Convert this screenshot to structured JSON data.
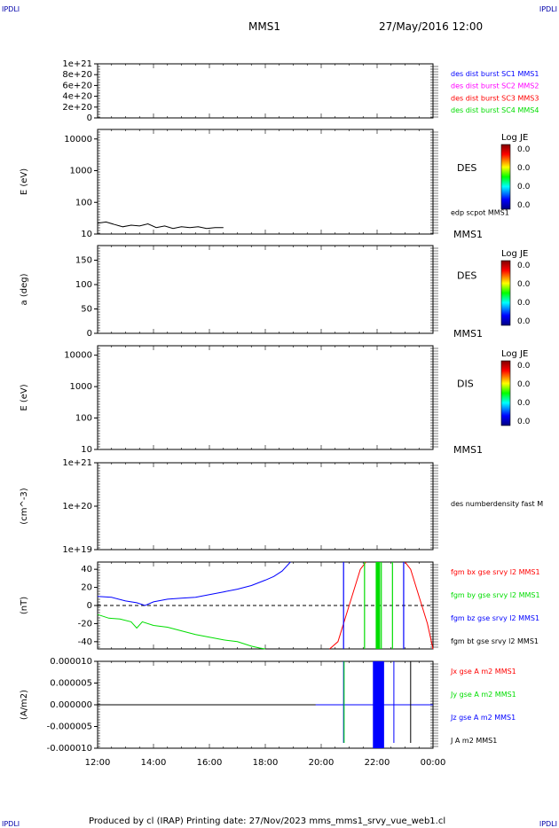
{
  "header": {
    "corner_left": "IPDLI",
    "corner_right": "IPDLI",
    "spacecraft": "MMS1",
    "datetime": "27/May/2016 12:00"
  },
  "footer": {
    "text": "Produced by cl (IRAP)   Printing date: 27/Nov/2023   mms_mms1_srvy_vue_web1.cl",
    "corner_left": "IPDLI",
    "corner_right": "IPDLI"
  },
  "xaxis": {
    "ticks": [
      "12:00",
      "14:00",
      "16:00",
      "18:00",
      "20:00",
      "22:00",
      "00:00"
    ],
    "range_hours": [
      12,
      24
    ]
  },
  "colors": {
    "c1": "#0000ff",
    "c2": "#ff00ff",
    "c3": "#ff0000",
    "c4": "#00dd00",
    "black": "#000000"
  },
  "chart_data": [
    {
      "type": "line",
      "yticks": [
        "1e+21",
        "8e+20",
        "6e+20",
        "4e+20",
        "2e+20",
        "0"
      ],
      "ylim": [
        0,
        1e+21
      ],
      "legend": [
        "des dist burst SC1 MMS1",
        "des dist burst SC2 MMS2",
        "des dist burst SC3 MMS3",
        "des dist burst SC4 MMS4"
      ],
      "zero_line": 0
    },
    {
      "type": "heatmap",
      "ylabel": "E (eV)",
      "scale": "log",
      "ylim": [
        10,
        20000
      ],
      "yticks": [
        "10000",
        "1000",
        "100",
        "10"
      ],
      "instrument": "DES",
      "colorbar_title": "Log JE",
      "colorbar_ticks": [
        "0.0",
        "0.0",
        "0.0",
        "0.0"
      ],
      "line_label": "edp scpot MMS1",
      "spacecraft_label": "MMS1",
      "series": [
        {
          "name": "edp scpot MMS1",
          "x": [
            12.0,
            12.3,
            12.6,
            12.9,
            13.2,
            13.5,
            13.8,
            14.1,
            14.4,
            14.7,
            15.0,
            15.3,
            15.6,
            15.9,
            16.2,
            16.5
          ],
          "y": [
            22,
            24,
            20,
            17,
            19,
            18,
            21,
            16,
            18,
            15,
            17,
            16,
            17,
            15,
            16,
            16
          ]
        }
      ]
    },
    {
      "type": "heatmap",
      "ylabel": "a (deg)",
      "ylim": [
        0,
        180
      ],
      "yticks": [
        "150",
        "100",
        "50",
        "0"
      ],
      "instrument": "DES",
      "colorbar_title": "Log JE",
      "colorbar_ticks": [
        "0.0",
        "0.0",
        "0.0",
        "0.0"
      ],
      "spacecraft_label": "MMS1"
    },
    {
      "type": "heatmap",
      "ylabel": "E (eV)",
      "scale": "log",
      "ylim": [
        10,
        20000
      ],
      "yticks": [
        "10000",
        "1000",
        "100",
        "10"
      ],
      "instrument": "DIS",
      "colorbar_title": "Log JE",
      "colorbar_ticks": [
        "0.0",
        "0.0",
        "0.0",
        "0.0"
      ],
      "spacecraft_label": "MMS1"
    },
    {
      "type": "line",
      "ylabel": "(cm^-3)",
      "scale": "log",
      "ylim": [
        1e+19,
        1e+21
      ],
      "yticks": [
        "1e+21",
        "1e+20",
        "1e+19"
      ],
      "legend": [
        "des numberdensity fast M"
      ]
    },
    {
      "type": "line",
      "ylabel": "(nT)",
      "ylim": [
        -48,
        48
      ],
      "yticks": [
        "40",
        "20",
        "0",
        "-20",
        "-40"
      ],
      "legend": [
        "fgm bx gse srvy l2 MMS1",
        "fgm by gse srvy l2 MMS1",
        "fgm bz gse srvy l2 MMS1",
        "fgm bt gse srvy l2 MMS1"
      ],
      "series": [
        {
          "name": "fgm bz gse srvy l2 MMS1",
          "x": [
            12.0,
            12.5,
            13.0,
            13.4,
            13.7,
            14.0,
            14.5,
            15.0,
            15.5,
            16.0,
            16.5,
            17.0,
            17.5,
            18.0,
            18.3,
            18.6,
            18.9
          ],
          "y": [
            10,
            9,
            5,
            3,
            0,
            4,
            7,
            8,
            9,
            12,
            15,
            18,
            22,
            28,
            32,
            38,
            48
          ]
        },
        {
          "name": "fgm by gse srvy l2 MMS1",
          "x": [
            12.0,
            12.4,
            12.8,
            13.2,
            13.4,
            13.6,
            14.0,
            14.5,
            15.0,
            15.5,
            16.0,
            16.5,
            17.0,
            17.5,
            17.8,
            18.0
          ],
          "y": [
            -10,
            -14,
            -15,
            -18,
            -25,
            -18,
            -22,
            -24,
            -28,
            -32,
            -35,
            -38,
            -40,
            -45,
            -47,
            -48
          ]
        },
        {
          "name": "fgm bx gse srvy l2 MMS1",
          "x": [
            20.3,
            20.6,
            20.8,
            21.0,
            21.2,
            21.4,
            21.6
          ],
          "y": [
            -48,
            -40,
            -20,
            0,
            20,
            40,
            48
          ]
        },
        {
          "name": "fgm bx gse srvy l2 MMS1",
          "x": [
            23.0,
            23.2,
            23.4,
            23.6,
            23.8,
            24.0
          ],
          "y": [
            48,
            40,
            20,
            0,
            -20,
            -48
          ]
        }
      ]
    },
    {
      "type": "line",
      "ylabel": "(A/m2)",
      "ylim": [
        -1e-05,
        1e-05
      ],
      "yticks": [
        "0.000010",
        "0.000005",
        "0.000000",
        "-0.000005",
        "-0.000010"
      ],
      "legend": [
        "Jx gse A m2 MMS1",
        "Jy gse A m2 MMS1",
        "Jz gse A m2 MMS1",
        "J A m2 MMS1"
      ]
    }
  ]
}
